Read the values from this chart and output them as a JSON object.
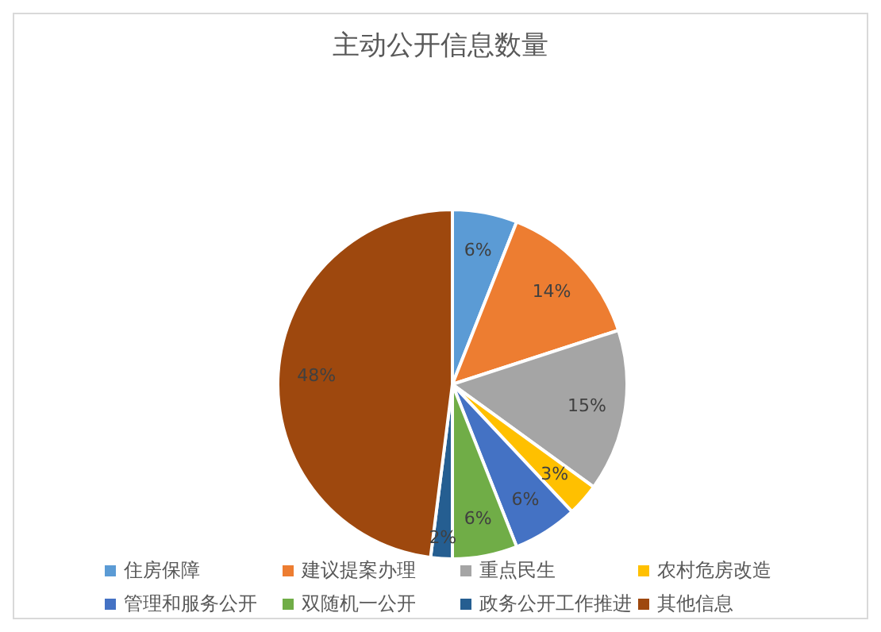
{
  "chart_data": {
    "type": "pie",
    "title": "主动公开信息数量",
    "categories": [
      "住房保障",
      "建议提案办理",
      "重点民生",
      "农村危房改造",
      "管理和服务公开",
      "双随机一公开",
      "政务公开工作推进",
      "其他信息"
    ],
    "values": [
      6,
      14,
      15,
      3,
      6,
      6,
      2,
      48
    ],
    "colors": [
      "#5b9bd5",
      "#ed7d31",
      "#a5a5a5",
      "#ffc000",
      "#4472c4",
      "#70ad47",
      "#255e91",
      "#9e480e"
    ],
    "value_labels": [
      "6%",
      "14%",
      "15%",
      "3%",
      "6%",
      "6%",
      "2%",
      "48%"
    ],
    "legend": "bottom"
  }
}
